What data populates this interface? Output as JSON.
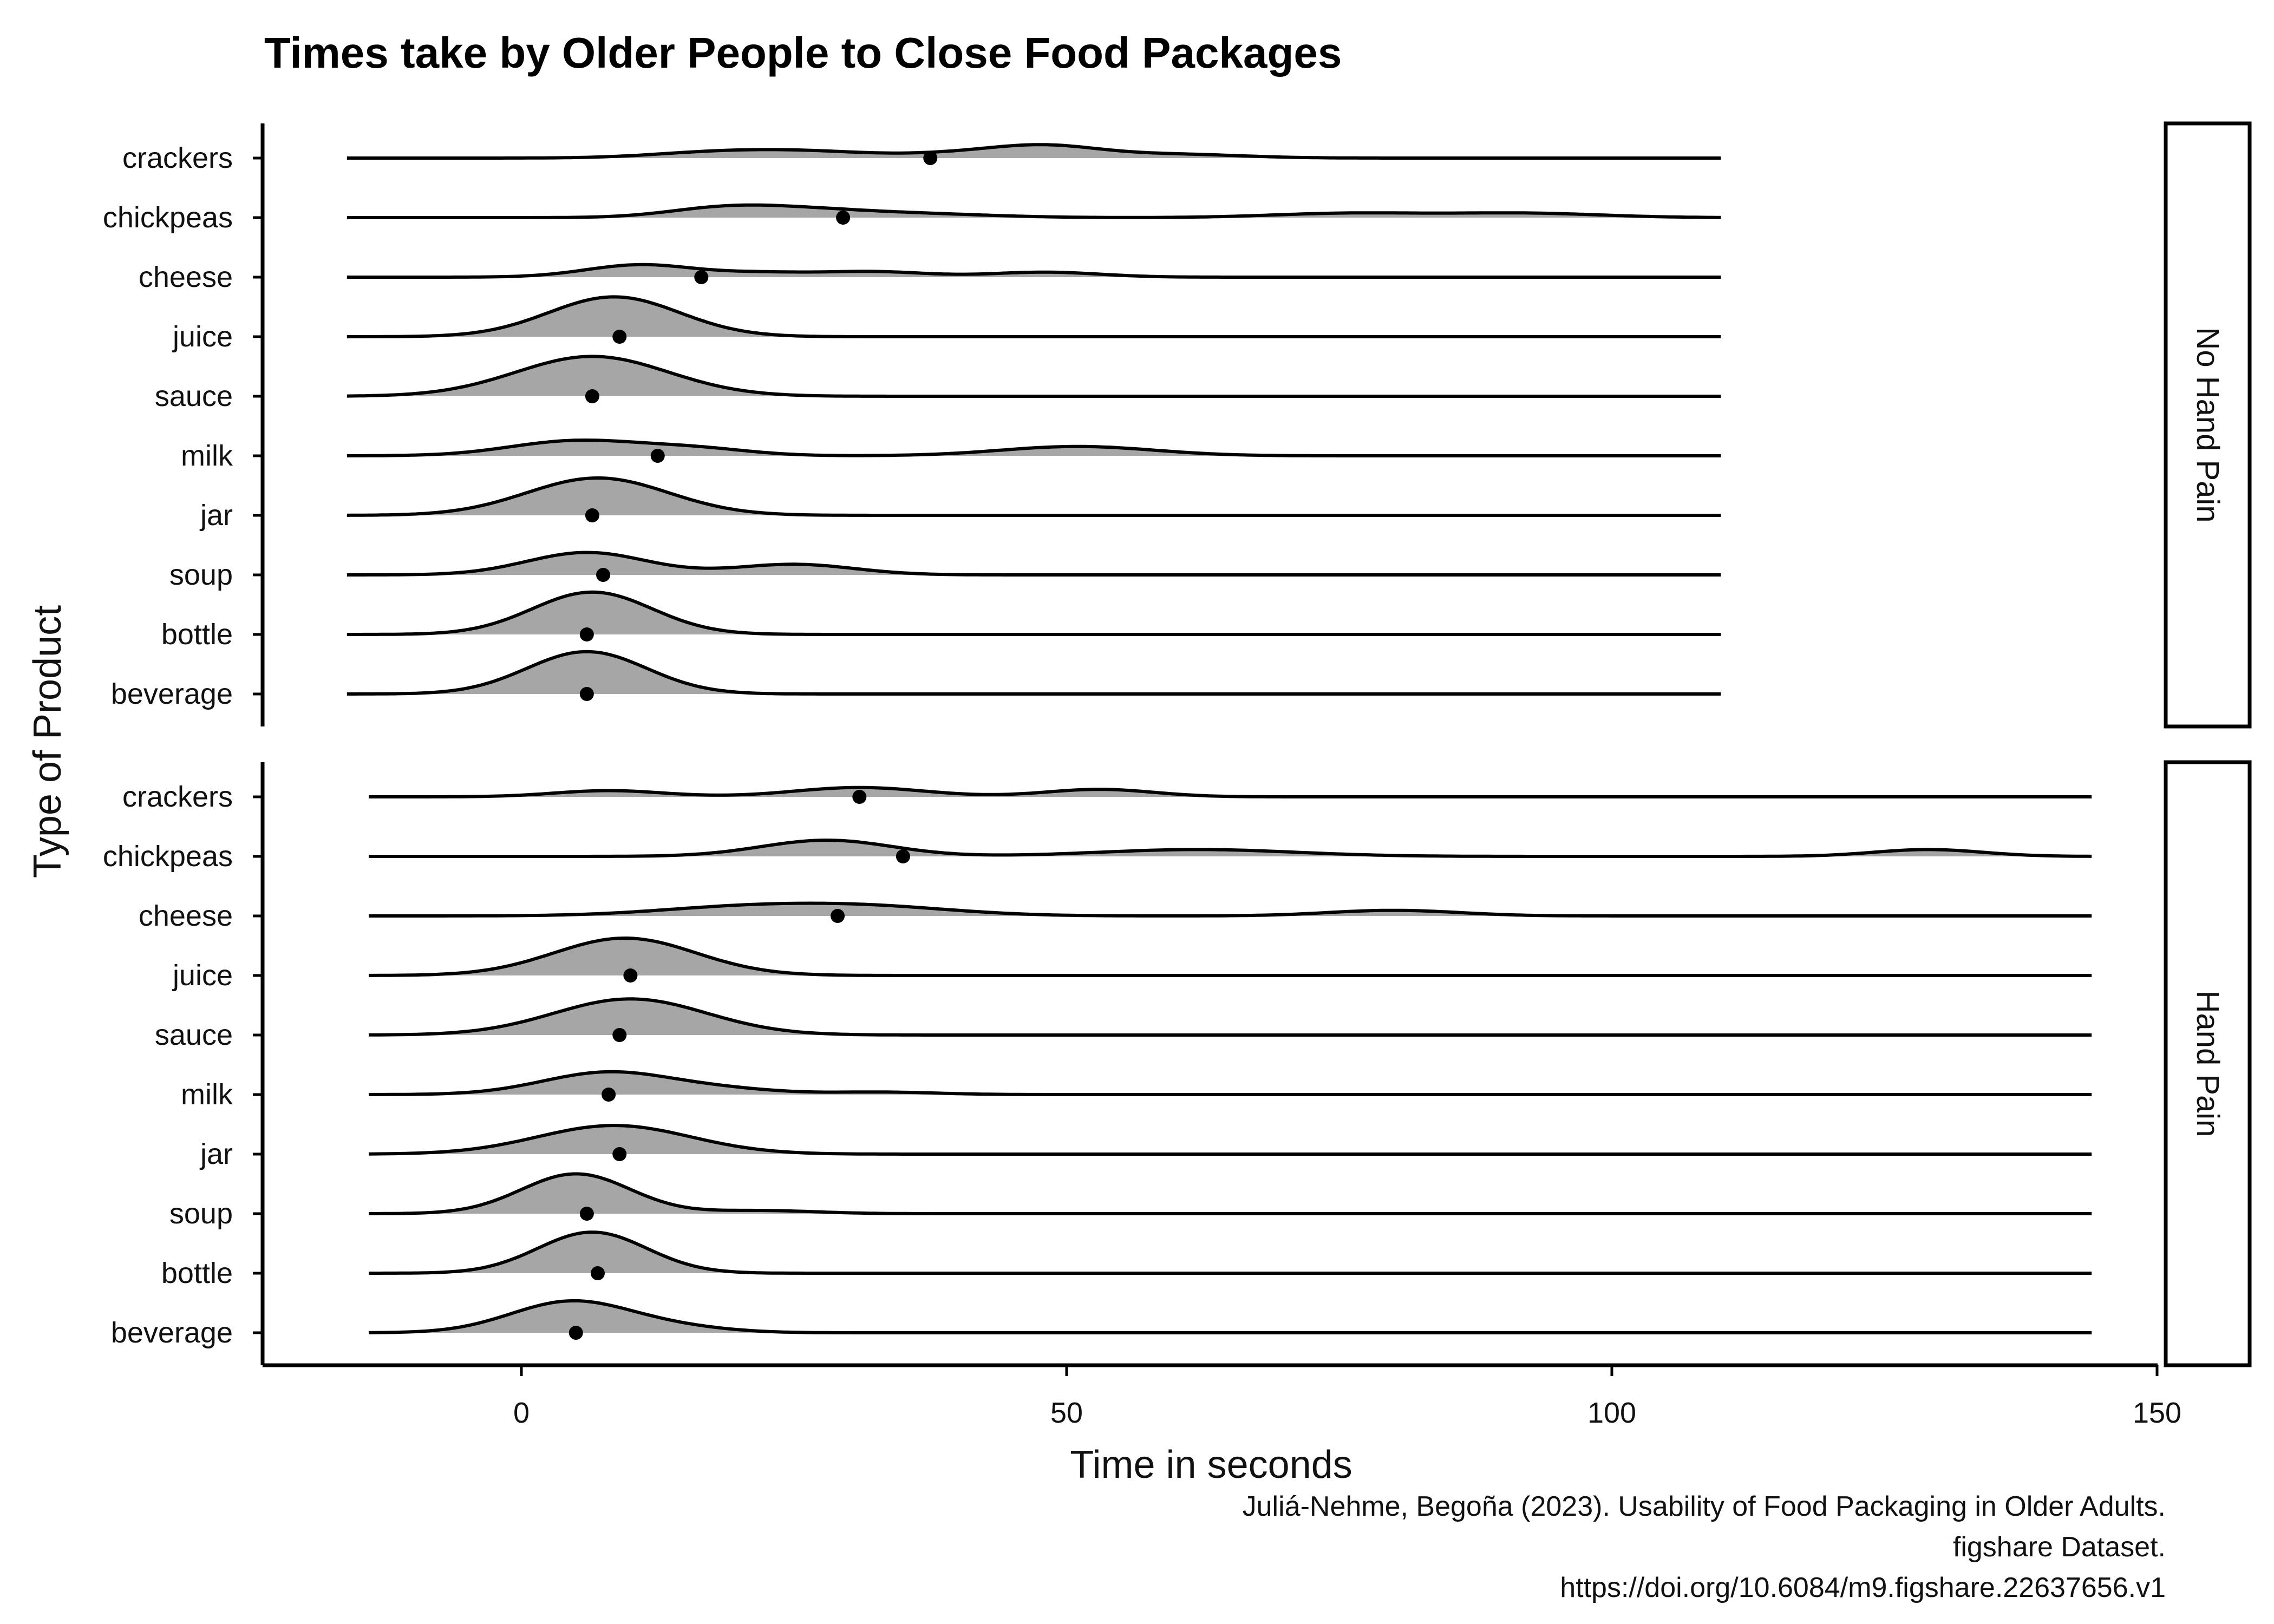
{
  "chart_data": {
    "type": "ridgeline",
    "title": "Times take by Older People to Close Food Packages",
    "xlabel": "Time in seconds",
    "ylabel": "Type of Product",
    "xlim": [
      -25,
      152
    ],
    "x_ticks": [
      0,
      50,
      100,
      150
    ],
    "x_tick_labels": [
      "0",
      "50",
      "100",
      "150"
    ],
    "categories": [
      "crackers",
      "chickpeas",
      "cheese",
      "juice",
      "sauce",
      "milk",
      "jar",
      "soup",
      "bottle",
      "beverage"
    ],
    "fill_color": "#a6a6a6",
    "point_color": "#000000",
    "grid": false,
    "caption": [
      "Juliá-Nehme, Begoña (2023). Usability of Food Packaging in Older Adults.",
      "figshare Dataset.",
      "https://doi.org/10.6084/m9.figshare.22637656.v1"
    ],
    "panels": [
      {
        "label": "No Hand Pain",
        "x_range": [
          -16,
          110
        ],
        "series": [
          {
            "name": "crackers",
            "mean": 37.5,
            "bumps": [
              [
                18,
                6,
                0.45
              ],
              [
                27,
                6,
                0.45
              ],
              [
                40,
                5,
                0.3
              ],
              [
                48,
                5,
                0.95
              ],
              [
                60,
                6,
                0.3
              ]
            ]
          },
          {
            "name": "chickpeas",
            "mean": 29.5,
            "bumps": [
              [
                18,
                5,
                0.6
              ],
              [
                25,
                6,
                0.6
              ],
              [
                36,
                7,
                0.3
              ],
              [
                76,
                7,
                0.35
              ],
              [
                92,
                7,
                0.35
              ]
            ]
          },
          {
            "name": "cheese",
            "mean": 16.5,
            "bumps": [
              [
                11,
                5,
                1.0
              ],
              [
                22,
                4,
                0.3
              ],
              [
                32,
                5,
                0.45
              ],
              [
                48,
                5,
                0.4
              ]
            ]
          },
          {
            "name": "juice",
            "mean": 9.0,
            "bumps": [
              [
                8.5,
                6,
                3.2
              ]
            ]
          },
          {
            "name": "sauce",
            "mean": 6.5,
            "bumps": [
              [
                6.5,
                7,
                3.2
              ]
            ]
          },
          {
            "name": "milk",
            "mean": 12.5,
            "bumps": [
              [
                5,
                6,
                1.2
              ],
              [
                16,
                5,
                0.55
              ],
              [
                51,
                7,
                0.75
              ]
            ]
          },
          {
            "name": "jar",
            "mean": 6.5,
            "bumps": [
              [
                7,
                6.5,
                3.0
              ]
            ]
          },
          {
            "name": "soup",
            "mean": 7.5,
            "bumps": [
              [
                6,
                5.5,
                1.8
              ],
              [
                25,
                5.5,
                0.85
              ]
            ]
          },
          {
            "name": "bottle",
            "mean": 6.0,
            "bumps": [
              [
                6.5,
                5.5,
                3.4
              ]
            ]
          },
          {
            "name": "beverage",
            "mean": 6.0,
            "bumps": [
              [
                6,
                5.5,
                3.4
              ]
            ]
          }
        ]
      },
      {
        "label": "Hand Pain",
        "x_range": [
          -14,
          144
        ],
        "series": [
          {
            "name": "crackers",
            "mean": 31.0,
            "bumps": [
              [
                8,
                5,
                0.5
              ],
              [
                31,
                6,
                0.75
              ],
              [
                53,
                5,
                0.6
              ]
            ]
          },
          {
            "name": "chickpeas",
            "mean": 35.0,
            "bumps": [
              [
                28,
                6,
                1.3
              ],
              [
                62,
                9,
                0.55
              ],
              [
                129,
                5,
                0.55
              ]
            ]
          },
          {
            "name": "cheese",
            "mean": 29.0,
            "bumps": [
              [
                20,
                8,
                0.65
              ],
              [
                32,
                8,
                0.7
              ],
              [
                80,
                6,
                0.45
              ]
            ]
          },
          {
            "name": "juice",
            "mean": 10.0,
            "bumps": [
              [
                9.5,
                6.5,
                3.0
              ]
            ]
          },
          {
            "name": "sauce",
            "mean": 9.0,
            "bumps": [
              [
                10,
                7,
                2.9
              ]
            ]
          },
          {
            "name": "milk",
            "mean": 8.0,
            "bumps": [
              [
                8,
                6,
                1.8
              ],
              [
                19,
                5,
                0.35
              ],
              [
                33,
                5,
                0.2
              ]
            ]
          },
          {
            "name": "jar",
            "mean": 9.0,
            "bumps": [
              [
                8.5,
                7,
                2.3
              ]
            ]
          },
          {
            "name": "soup",
            "mean": 6.0,
            "bumps": [
              [
                5,
                5,
                3.2
              ],
              [
                22,
                5,
                0.25
              ]
            ]
          },
          {
            "name": "bottle",
            "mean": 7.0,
            "bumps": [
              [
                6.5,
                5,
                3.3
              ]
            ]
          },
          {
            "name": "beverage",
            "mean": 5.0,
            "bumps": [
              [
                4.5,
                5.5,
                2.5
              ],
              [
                14,
                5,
                0.4
              ]
            ]
          }
        ]
      }
    ]
  }
}
